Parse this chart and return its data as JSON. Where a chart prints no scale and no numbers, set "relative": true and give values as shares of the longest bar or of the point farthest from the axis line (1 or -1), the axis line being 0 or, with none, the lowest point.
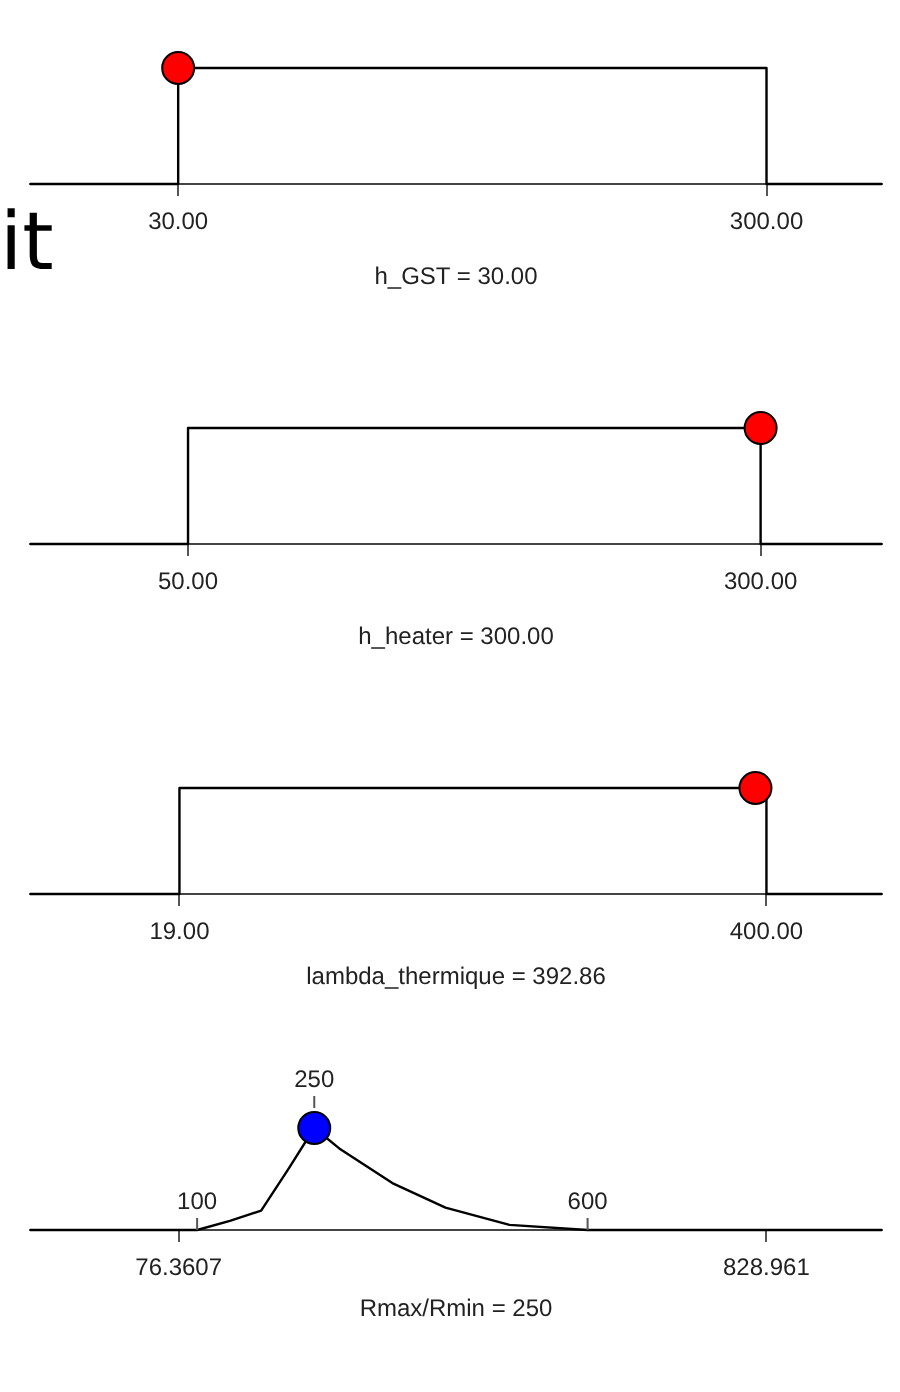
{
  "chart_data": [
    {
      "type": "line",
      "relative": true,
      "xlabel": "h_GST = 30.00",
      "xlim": [
        -38,
        353
      ],
      "xticks": [
        {
          "value": 30,
          "label": "30.00"
        },
        {
          "value": 300,
          "label": "300.00"
        }
      ],
      "annotations": [
        "it"
      ],
      "series": [
        {
          "color": "#000000",
          "x": [
            -38,
            30,
            30,
            300,
            300,
            353
          ],
          "values": [
            0,
            0,
            1,
            1,
            0,
            0
          ]
        },
        {
          "type": "scatter",
          "color": "#ff0000",
          "x": [
            30
          ],
          "values": [
            1
          ]
        }
      ]
    },
    {
      "type": "line",
      "relative": true,
      "xlabel": "h_heater = 300.00",
      "xlim": [
        -19,
        353
      ],
      "xticks": [
        {
          "value": 50,
          "label": "50.00"
        },
        {
          "value": 300,
          "label": "300.00"
        }
      ],
      "series": [
        {
          "color": "#000000",
          "x": [
            -19,
            50,
            50,
            300,
            300,
            353
          ],
          "values": [
            0,
            0,
            1,
            1,
            0,
            0
          ]
        },
        {
          "type": "scatter",
          "color": "#ff0000",
          "x": [
            300
          ],
          "values": [
            1
          ]
        }
      ]
    },
    {
      "type": "line",
      "relative": true,
      "xlabel": "lambda_thermique = 392.86",
      "xlim": [
        -78,
        475
      ],
      "xticks": [
        {
          "value": 19,
          "label": "19.00"
        },
        {
          "value": 400,
          "label": "400.00"
        }
      ],
      "series": [
        {
          "color": "#000000",
          "x": [
            -78,
            19,
            19,
            400,
            400,
            475
          ],
          "values": [
            0,
            0,
            1,
            1,
            0,
            0
          ]
        },
        {
          "type": "scatter",
          "color": "#ff0000",
          "x": [
            392.86
          ],
          "values": [
            1
          ]
        }
      ]
    },
    {
      "type": "line",
      "relative": true,
      "xlabel": "Rmax/Rmin = 250",
      "xlim": [
        -114,
        977
      ],
      "xticks": [
        76.3607,
        828.961
      ],
      "annotations": [
        {
          "text": "100",
          "x": 100,
          "y": 0
        },
        {
          "text": "250",
          "x": 250,
          "y": 1
        },
        {
          "text": "600",
          "x": 600,
          "y": 0
        }
      ],
      "series": [
        {
          "color": "#000000",
          "x": [
            -114,
            100,
            142,
            182,
            217,
            250,
            282,
            350,
            418,
            500,
            600,
            977
          ],
          "values": [
            0,
            0,
            0.09,
            0.19,
            0.6,
            1,
            0.8,
            0.46,
            0.22,
            0.05,
            0,
            0
          ]
        },
        {
          "type": "scatter",
          "color": "#0000ff",
          "x": [
            250
          ],
          "values": [
            1
          ]
        }
      ]
    }
  ]
}
